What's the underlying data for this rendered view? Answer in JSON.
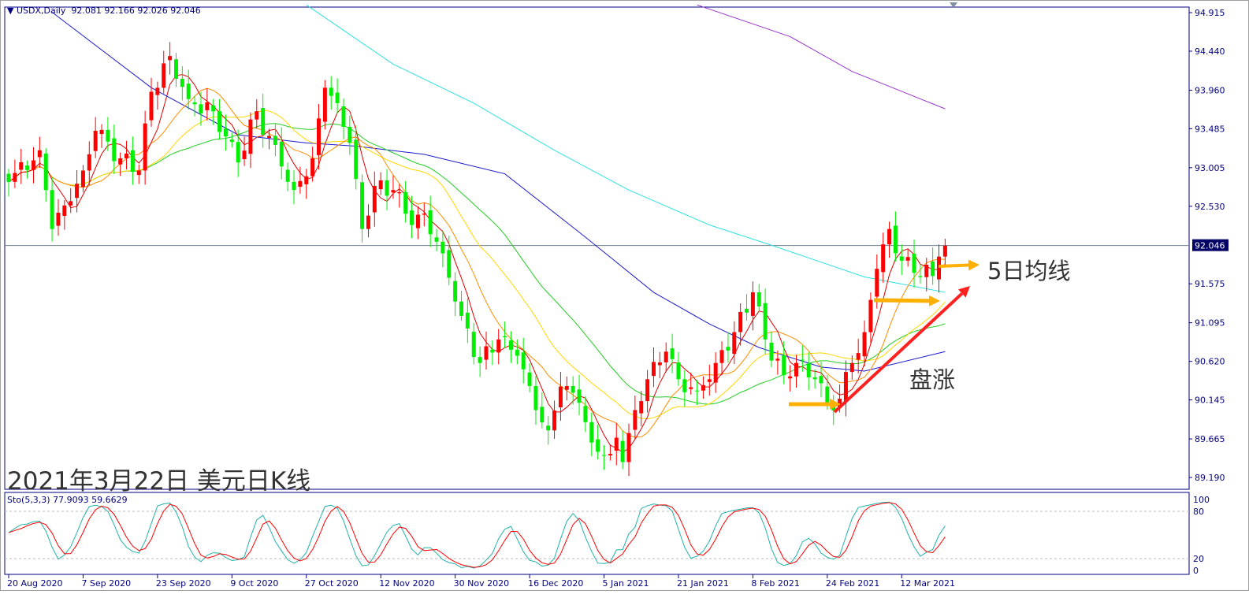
{
  "header": {
    "symbol": "USDX,Daily",
    "ohlc": "92.081 92.166 92.026 92.046"
  },
  "annotations": {
    "title": "2021年3月22日 美元日K线",
    "ma5_label": "5日均线",
    "trend_label": "盘涨"
  },
  "stochastic": {
    "label": "Sto(5,3,3) 77.9093 59.6629",
    "levels": [
      "100",
      "80",
      "20",
      "0"
    ]
  },
  "colors": {
    "up": "#ff0000",
    "down": "#00ee00",
    "ma5": "#e00000",
    "ma10": "#ff8c00",
    "ma20": "#ffd700",
    "ma30": "#22cc22",
    "ma60": "#1a1acc",
    "ma100": "#33e0e0",
    "ma200": "#9933cc",
    "axis": "#000080",
    "arrow_orange": "#ffb000",
    "arrow_red": "#ff2020",
    "sto_main": "#20b2aa",
    "sto_signal": "#ff0000"
  },
  "chart_data": {
    "type": "candlestick",
    "ylim": [
      89.0,
      95.05
    ],
    "y_ticks": [
      "94.915",
      "94.440",
      "93.960",
      "93.485",
      "93.005",
      "92.530",
      "92.046",
      "91.575",
      "91.095",
      "90.620",
      "90.145",
      "89.665",
      "89.190"
    ],
    "current_price": "92.046",
    "x_ticks": [
      {
        "bar": 0,
        "label": "20 Aug 2020"
      },
      {
        "bar": 12,
        "label": "7 Sep 2020"
      },
      {
        "bar": 24,
        "label": "23 Sep 2020"
      },
      {
        "bar": 36,
        "label": "9 Oct 2020"
      },
      {
        "bar": 48,
        "label": "27 Oct 2020"
      },
      {
        "bar": 60,
        "label": "12 Nov 2020"
      },
      {
        "bar": 72,
        "label": "30 Nov 2020"
      },
      {
        "bar": 84,
        "label": "16 Dec 2020"
      },
      {
        "bar": 96,
        "label": "5 Jan 2021"
      },
      {
        "bar": 108,
        "label": "21 Jan 2021"
      },
      {
        "bar": 120,
        "label": "8 Feb 2021"
      },
      {
        "bar": 132,
        "label": "24 Feb 2021"
      },
      {
        "bar": 144,
        "label": "12 Mar 2021"
      }
    ],
    "close_keypoints": [
      [
        0,
        92.83
      ],
      [
        5,
        93.22
      ],
      [
        7,
        92.25
      ],
      [
        9,
        92.54
      ],
      [
        12,
        92.97
      ],
      [
        14,
        93.46
      ],
      [
        18,
        93.12
      ],
      [
        21,
        92.97
      ],
      [
        23,
        93.94
      ],
      [
        26,
        94.38
      ],
      [
        29,
        93.85
      ],
      [
        33,
        93.7
      ],
      [
        37,
        93.07
      ],
      [
        40,
        93.7
      ],
      [
        44,
        93.02
      ],
      [
        46,
        92.73
      ],
      [
        49,
        93.12
      ],
      [
        51,
        93.99
      ],
      [
        53,
        93.8
      ],
      [
        55,
        93.31
      ],
      [
        57,
        92.25
      ],
      [
        59,
        92.78
      ],
      [
        62,
        92.73
      ],
      [
        65,
        92.3
      ],
      [
        67,
        92.44
      ],
      [
        70,
        91.95
      ],
      [
        73,
        91.18
      ],
      [
        76,
        90.6
      ],
      [
        79,
        90.89
      ],
      [
        82,
        90.69
      ],
      [
        85,
        90.02
      ],
      [
        87,
        89.77
      ],
      [
        89,
        90.31
      ],
      [
        92,
        90.11
      ],
      [
        94,
        89.62
      ],
      [
        97,
        89.48
      ],
      [
        98,
        89.68
      ],
      [
        99,
        89.38
      ],
      [
        101,
        90.02
      ],
      [
        103,
        90.4
      ],
      [
        106,
        90.74
      ],
      [
        108,
        90.4
      ],
      [
        111,
        90.26
      ],
      [
        114,
        90.6
      ],
      [
        117,
        90.98
      ],
      [
        120,
        91.47
      ],
      [
        122,
        90.89
      ],
      [
        125,
        90.45
      ],
      [
        127,
        90.6
      ],
      [
        130,
        90.4
      ],
      [
        132,
        90.11
      ],
      [
        134,
        90.16
      ],
      [
        136,
        90.6
      ],
      [
        138,
        90.98
      ],
      [
        140,
        91.76
      ],
      [
        142,
        92.25
      ],
      [
        144,
        91.86
      ],
      [
        146,
        91.71
      ],
      [
        148,
        91.81
      ],
      [
        149,
        91.67
      ],
      [
        150,
        91.91
      ],
      [
        151,
        92.046
      ]
    ],
    "ma_long": {
      "ma60": [
        [
          7,
          94.92
        ],
        [
          23,
          93.99
        ],
        [
          37,
          93.41
        ],
        [
          48,
          93.31
        ],
        [
          56,
          93.27
        ],
        [
          67,
          93.17
        ],
        [
          80,
          92.93
        ],
        [
          93,
          92.15
        ],
        [
          104,
          91.47
        ],
        [
          113,
          91.08
        ],
        [
          121,
          90.79
        ],
        [
          131,
          90.55
        ],
        [
          138,
          90.5
        ],
        [
          151,
          90.74
        ]
      ],
      "ma100": [
        [
          48,
          95.01
        ],
        [
          62,
          94.28
        ],
        [
          75,
          93.8
        ],
        [
          88,
          93.22
        ],
        [
          100,
          92.73
        ],
        [
          113,
          92.3
        ],
        [
          123,
          92.05
        ],
        [
          138,
          91.66
        ],
        [
          151,
          91.47
        ]
      ],
      "ma200": [
        [
          111,
          95.01
        ],
        [
          126,
          94.62
        ],
        [
          136,
          94.19
        ],
        [
          151,
          93.73
        ]
      ]
    }
  }
}
